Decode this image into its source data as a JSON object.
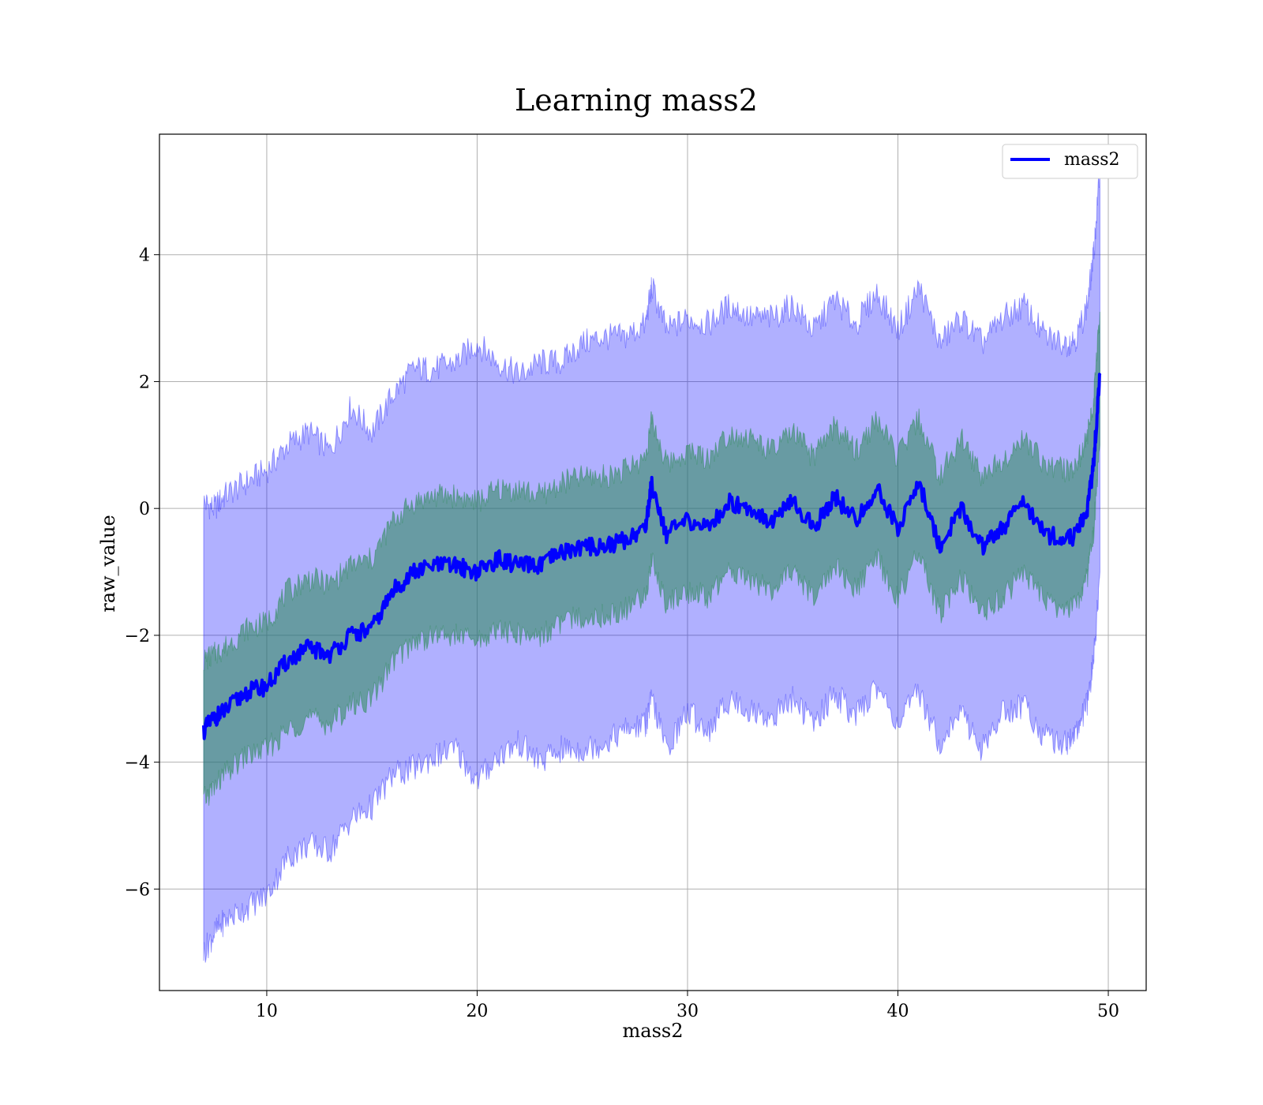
{
  "chart_data": {
    "type": "line",
    "title": "Learning mass2",
    "xlabel": "mass2",
    "ylabel": "raw_value",
    "xlim": [
      4.9,
      51.8
    ],
    "ylim": [
      -7.6,
      5.9
    ],
    "grid": true,
    "legend_position": "top-right",
    "x_ticks": [
      10,
      20,
      30,
      40,
      50
    ],
    "x_tick_labels": [
      "10",
      "20",
      "30",
      "40",
      "50"
    ],
    "y_ticks": [
      -6,
      -4,
      -2,
      0,
      2,
      4
    ],
    "y_tick_labels": [
      "−6",
      "−4",
      "−2",
      "0",
      "2",
      "4"
    ],
    "colors": {
      "mean": "#0000ff",
      "outer_band": "#0000ff",
      "inner_band": "#2e8b57",
      "inner_mix": "#7a9fa8"
    },
    "series": [
      {
        "name": "mass2",
        "role": "mean",
        "band_inner_halfwidth": 1.0,
        "band_outer_halfwidth": 3.1
      }
    ],
    "x": [
      7.0,
      7.5,
      8.0,
      9.0,
      10.0,
      11.0,
      12.0,
      13.0,
      14.0,
      15.0,
      16.0,
      17.0,
      18.0,
      19.0,
      20.0,
      21.0,
      22.0,
      23.0,
      24.0,
      25.0,
      26.0,
      27.0,
      28.0,
      28.3,
      29.0,
      30.0,
      31.0,
      32.0,
      33.0,
      34.0,
      35.0,
      36.0,
      37.0,
      38.0,
      39.0,
      40.0,
      41.0,
      42.0,
      43.0,
      44.0,
      45.0,
      46.0,
      47.0,
      48.0,
      48.5,
      49.0,
      49.3,
      49.6
    ],
    "mean": [
      -3.5,
      -3.3,
      -3.2,
      -2.9,
      -2.8,
      -2.4,
      -2.2,
      -2.3,
      -2.0,
      -1.9,
      -1.3,
      -1.0,
      -0.9,
      -0.9,
      -1.0,
      -0.8,
      -0.9,
      -0.9,
      -0.7,
      -0.6,
      -0.6,
      -0.5,
      -0.3,
      0.4,
      -0.4,
      -0.2,
      -0.3,
      0.1,
      0.0,
      -0.2,
      0.1,
      -0.3,
      0.2,
      -0.2,
      0.3,
      -0.3,
      0.4,
      -0.6,
      0.0,
      -0.6,
      -0.3,
      0.1,
      -0.4,
      -0.5,
      -0.4,
      0.0,
      0.7,
      2.1
    ],
    "outer_upper": [
      0.1,
      0.0,
      0.2,
      0.4,
      0.6,
      1.0,
      1.2,
      0.9,
      1.6,
      1.2,
      1.8,
      2.2,
      2.2,
      2.3,
      2.6,
      2.3,
      2.1,
      2.3,
      2.3,
      2.6,
      2.7,
      2.7,
      2.9,
      3.5,
      2.8,
      3.0,
      2.9,
      3.2,
      3.0,
      3.0,
      3.2,
      2.8,
      3.3,
      2.9,
      3.4,
      2.8,
      3.5,
      2.6,
      3.0,
      2.6,
      3.0,
      3.2,
      2.7,
      2.6,
      2.7,
      3.2,
      4.0,
      5.3
    ],
    "outer_lower": [
      -7.0,
      -6.7,
      -6.5,
      -6.3,
      -6.1,
      -5.5,
      -5.3,
      -5.4,
      -4.9,
      -4.7,
      -4.2,
      -4.1,
      -3.9,
      -3.8,
      -4.3,
      -3.9,
      -3.7,
      -4.0,
      -3.8,
      -3.8,
      -3.7,
      -3.5,
      -3.4,
      -3.0,
      -3.8,
      -3.2,
      -3.5,
      -3.0,
      -3.2,
      -3.3,
      -3.0,
      -3.4,
      -2.9,
      -3.3,
      -2.8,
      -3.4,
      -2.9,
      -3.7,
      -3.2,
      -3.8,
      -3.2,
      -3.1,
      -3.6,
      -3.7,
      -3.5,
      -3.1,
      -2.4,
      -1.0
    ],
    "inner_upper": [
      -2.4,
      -2.3,
      -2.2,
      -1.9,
      -1.8,
      -1.3,
      -1.1,
      -1.2,
      -0.9,
      -0.8,
      -0.2,
      0.1,
      0.2,
      0.2,
      0.1,
      0.3,
      0.3,
      0.2,
      0.4,
      0.5,
      0.5,
      0.6,
      0.8,
      1.4,
      0.7,
      0.9,
      0.8,
      1.2,
      1.1,
      0.9,
      1.2,
      0.8,
      1.3,
      0.9,
      1.4,
      0.8,
      1.4,
      0.5,
      1.1,
      0.5,
      0.8,
      1.1,
      0.7,
      0.6,
      0.7,
      1.1,
      1.7,
      3.1
    ],
    "inner_lower": [
      -4.6,
      -4.4,
      -4.2,
      -3.9,
      -3.8,
      -3.5,
      -3.3,
      -3.4,
      -3.1,
      -3.0,
      -2.4,
      -2.1,
      -2.0,
      -2.0,
      -2.1,
      -1.9,
      -2.0,
      -2.0,
      -1.8,
      -1.7,
      -1.7,
      -1.6,
      -1.4,
      -0.8,
      -1.5,
      -1.3,
      -1.4,
      -1.0,
      -1.1,
      -1.3,
      -1.0,
      -1.4,
      -0.9,
      -1.3,
      -0.8,
      -1.4,
      -0.7,
      -1.7,
      -1.1,
      -1.7,
      -1.4,
      -1.0,
      -1.5,
      -1.6,
      -1.5,
      -1.1,
      -0.4,
      1.0
    ]
  }
}
